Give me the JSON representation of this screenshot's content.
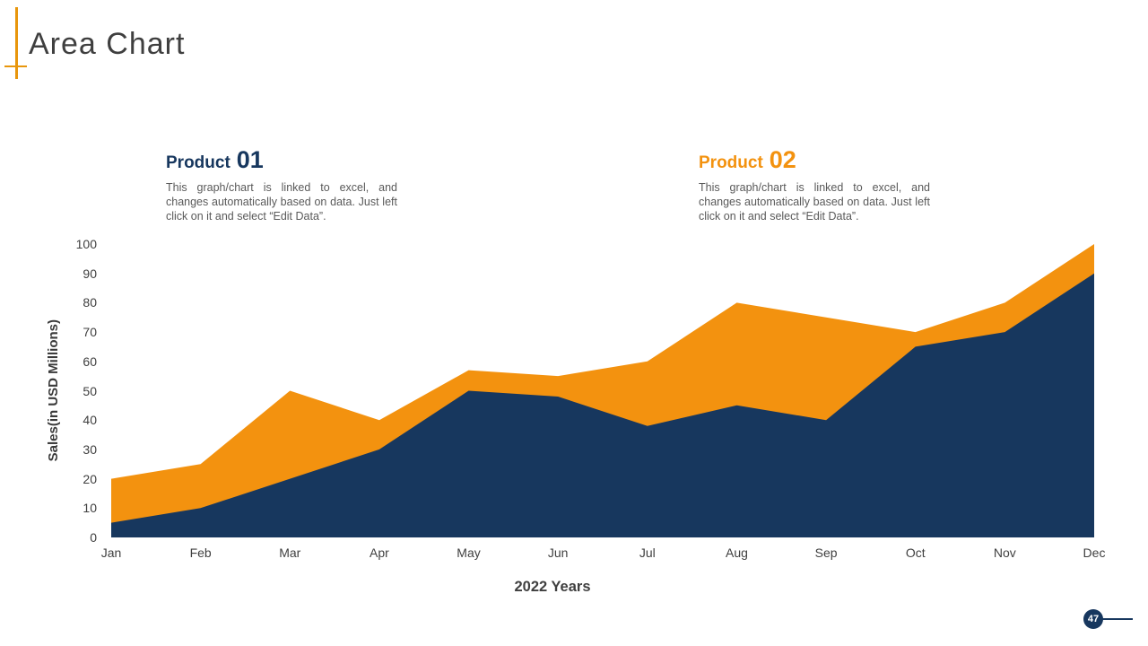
{
  "slide": {
    "title": "Area Chart",
    "page_number": "47"
  },
  "colors": {
    "accent_orange": "#E8960C",
    "navy": "#17375E",
    "orange": "#F3920F"
  },
  "legends": [
    {
      "label": "Product",
      "number": "01",
      "color": "#17375E",
      "description": "This graph/chart is linked to excel, and changes automatically based on data. Just left click on it and select “Edit Data”."
    },
    {
      "label": "Product",
      "number": "02",
      "color": "#F3920F",
      "description": "This graph/chart is linked to excel, and changes automatically based on data. Just left click on it and select “Edit Data”."
    }
  ],
  "chart_data": {
    "type": "area",
    "categories": [
      "Jan",
      "Feb",
      "Mar",
      "Apr",
      "May",
      "Jun",
      "Jul",
      "Aug",
      "Sep",
      "Oct",
      "Nov",
      "Dec"
    ],
    "series": [
      {
        "name": "Product 02",
        "color": "#F3920F",
        "values": [
          20,
          25,
          50,
          40,
          57,
          55,
          60,
          80,
          75,
          70,
          80,
          100
        ]
      },
      {
        "name": "Product 01",
        "color": "#17375E",
        "values": [
          5,
          10,
          20,
          30,
          50,
          48,
          38,
          45,
          40,
          65,
          70,
          90
        ]
      }
    ],
    "title": "",
    "xlabel": "2022 Years",
    "ylabel": "Sales(in USD Millions)",
    "ylim": [
      0,
      100
    ],
    "yticks": [
      0,
      10,
      20,
      30,
      40,
      50,
      60,
      70,
      80,
      90,
      100
    ],
    "grid": false,
    "legend_position": "top"
  }
}
